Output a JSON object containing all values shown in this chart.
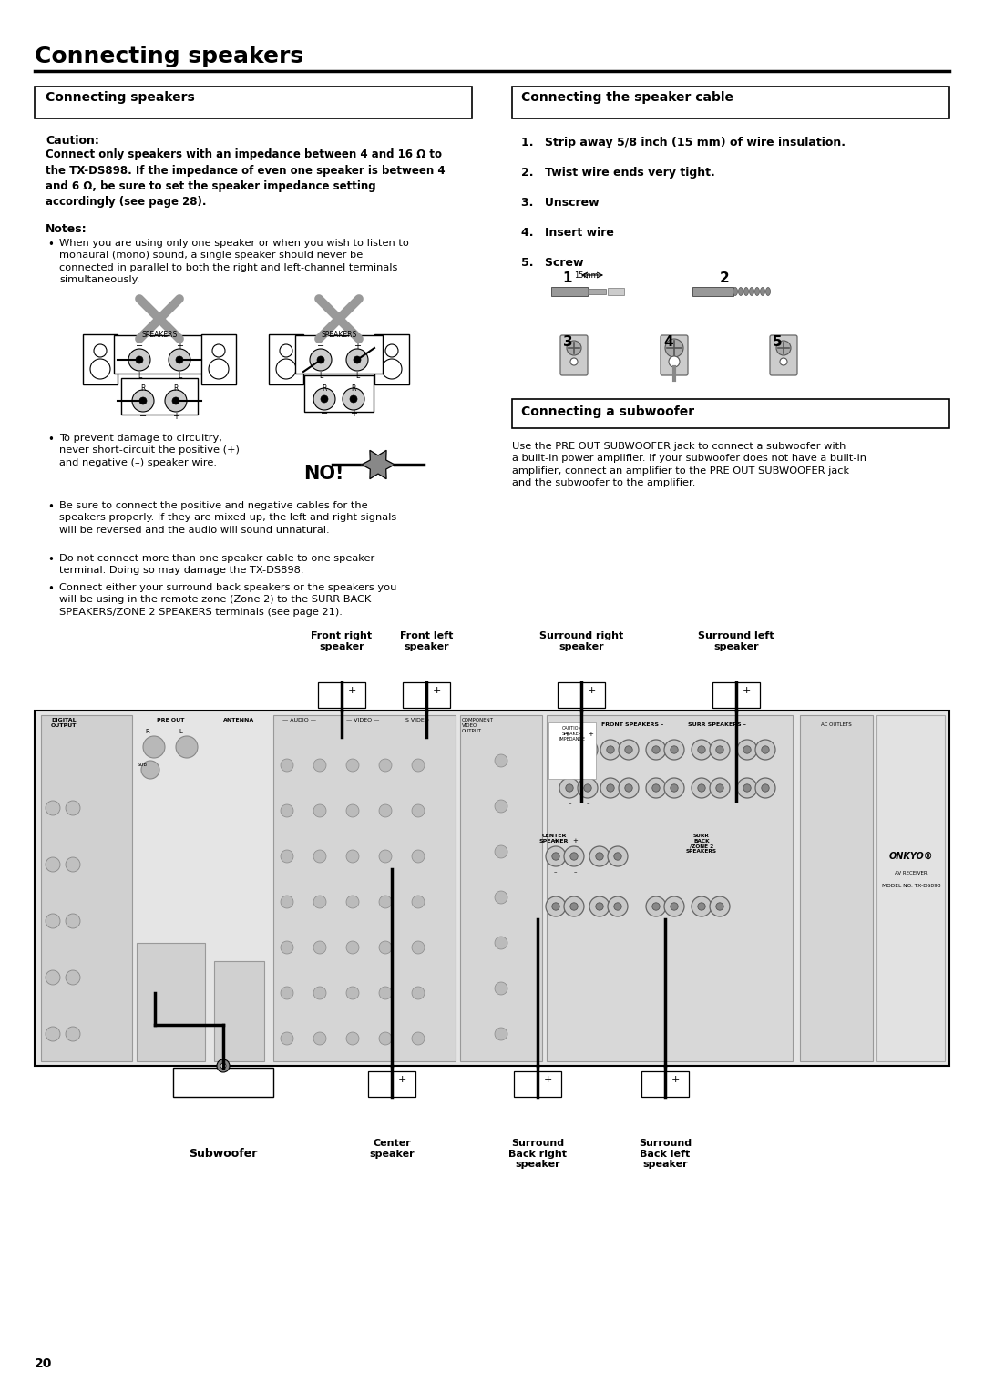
{
  "page_title": "Connecting speakers",
  "page_number": "20",
  "bg_color": "#ffffff",
  "box_header_left": "Connecting speakers",
  "box_header_right": "Connecting the speaker cable",
  "caution_label": "Caution:",
  "caution_body": "Connect only speakers with an impedance between 4 and 16 Ω to\nthe TX-DS898. If the impedance of even one speaker is between 4\nand 6 Ω, be sure to set the speaker impedance setting\naccordingly (see page 28).",
  "notes_label": "Notes:",
  "note1": "When you are using only one speaker or when you wish to listen to\nmonaural (mono) sound, a single speaker should never be\nconnected in parallel to both the right and left-channel terminals\nsimultaneously.",
  "note2_text": "To prevent damage to circuitry,\nnever short-circuit the positive (+)\nand negative (–) speaker wire.",
  "note2_label": "NO!",
  "note3": "Be sure to connect the positive and negative cables for the\nspeakers properly. If they are mixed up, the left and right signals\nwill be reversed and the audio will sound unnatural.",
  "note4": "Do not connect more than one speaker cable to one speaker\nterminal. Doing so may damage the TX-DS898.",
  "note5": "Connect either your surround back speakers or the speakers you\nwill be using in the remote zone (Zone 2) to the SURR BACK\nSPEAKERS/ZONE 2 SPEAKERS terminals (see page 21).",
  "cable_steps": [
    "Strip away 5/8 inch (15 mm) of wire insulation.",
    "Twist wire ends very tight.",
    "Unscrew",
    "Insert wire",
    "Screw"
  ],
  "subwoofer_header": "Connecting a subwoofer",
  "subwoofer_text": "Use the PRE OUT SUBWOOFER jack to connect a subwoofer with\na built-in power amplifier. If your subwoofer does not have a built-in\namplifier, connect an amplifier to the PRE OUT SUBWOOFER jack\nand the subwoofer to the amplifier.",
  "label_front_right": "Front right\nspeaker",
  "label_front_left": "Front left\nspeaker",
  "label_surr_right": "Surround right\nspeaker",
  "label_surr_left": "Surround left\nspeaker",
  "label_center": "Center\nspeaker",
  "label_sbr": "Surround\nBack right\nspeaker",
  "label_sbl": "Surround\nBack left\nspeaker",
  "label_subwoofer": "Subwoofer"
}
